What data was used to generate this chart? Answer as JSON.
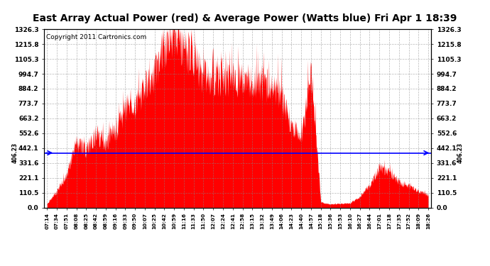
{
  "title": "East Array Actual Power (red) & Average Power (Watts blue) Fri Apr 1 18:39",
  "copyright": "Copyright 2011 Cartronics.com",
  "avg_power": 406.23,
  "y_max": 1326.3,
  "y_min": 0.0,
  "yticks": [
    0.0,
    110.5,
    221.1,
    331.6,
    442.1,
    552.6,
    663.2,
    773.7,
    884.2,
    994.7,
    1105.3,
    1215.8,
    1326.3
  ],
  "xtick_labels": [
    "07:14",
    "07:34",
    "07:51",
    "08:08",
    "08:25",
    "08:42",
    "08:59",
    "09:16",
    "09:33",
    "09:50",
    "10:07",
    "10:25",
    "10:42",
    "10:59",
    "11:16",
    "11:33",
    "11:50",
    "12:07",
    "12:24",
    "12:41",
    "12:58",
    "13:15",
    "13:32",
    "13:49",
    "14:06",
    "14:23",
    "14:40",
    "14:57",
    "15:18",
    "15:36",
    "15:53",
    "16:10",
    "16:27",
    "16:44",
    "17:01",
    "17:18",
    "17:35",
    "17:52",
    "18:09",
    "18:26"
  ],
  "fill_color": "#FF0000",
  "line_color": "#0000FF",
  "bg_color": "#FFFFFF",
  "grid_color": "#888888",
  "title_fontsize": 10,
  "copyright_fontsize": 6.5,
  "power_profile": [
    30,
    120,
    250,
    480,
    430,
    550,
    480,
    560,
    750,
    720,
    900,
    1000,
    1200,
    1326,
    1200,
    1100,
    980,
    960,
    970,
    960,
    950,
    940,
    930,
    900,
    820,
    600,
    510,
    1040,
    40,
    25,
    30,
    35,
    80,
    170,
    295,
    265,
    190,
    160,
    125,
    90
  ]
}
